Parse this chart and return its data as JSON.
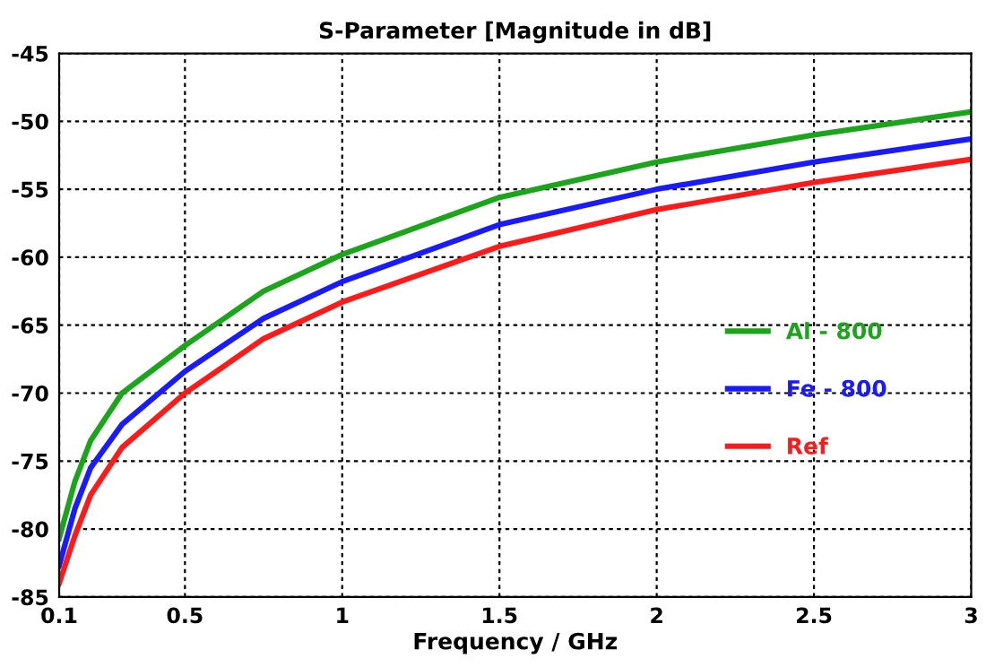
{
  "chart_data": {
    "type": "line",
    "title": "S-Parameter [Magnitude in dB]",
    "xlabel": "Frequency / GHz",
    "x": [
      0.1,
      0.15,
      0.2,
      0.3,
      0.5,
      0.75,
      1,
      1.5,
      2,
      2.5,
      3
    ],
    "series": [
      {
        "name": "Al - 800",
        "color": "#1aa51a",
        "values": [
          -80.7,
          -76.5,
          -73.5,
          -70,
          -66.5,
          -62.5,
          -59.8,
          -55.6,
          -53,
          -51,
          -49.3
        ]
      },
      {
        "name": "Fe - 800",
        "color": "#1a1aff",
        "values": [
          -82.7,
          -78.5,
          -75.5,
          -72.3,
          -68.4,
          -64.5,
          -61.8,
          -57.6,
          -55,
          -53,
          -51.3
        ]
      },
      {
        "name": "Ref",
        "color": "#ff1a1a",
        "values": [
          -84,
          -80.5,
          -77.5,
          -74,
          -70,
          -66,
          -63.3,
          -59.2,
          -56.5,
          -54.5,
          -52.8
        ]
      }
    ],
    "xlim": [
      0.1,
      3
    ],
    "xticks": [
      0.1,
      0.5,
      1,
      1.5,
      2,
      2.5,
      3
    ],
    "ylim": [
      -85,
      -45
    ],
    "yticks": [
      -85,
      -80,
      -75,
      -70,
      -65,
      -60,
      -55,
      -50,
      -45
    ],
    "grid": true,
    "legend": "right",
    "line_style": "solid",
    "marker": "none"
  }
}
